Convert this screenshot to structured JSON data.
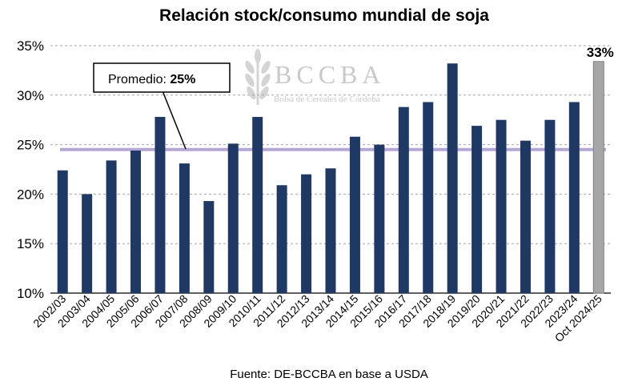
{
  "chart_data": {
    "type": "bar",
    "title": "Relación stock/consumo mundial de soja",
    "source": "Fuente: DE-BCCBA en base a USDA",
    "categories": [
      "2002/03",
      "2003/04",
      "2004/05",
      "2005/06",
      "2006/07",
      "2007/08",
      "2008/09",
      "2009/10",
      "2010/11",
      "2011/12",
      "2012/13",
      "2013/14",
      "2014/15",
      "2015/16",
      "2016/17",
      "2017/18",
      "2018/19",
      "2019/20",
      "2020/21",
      "2021/22",
      "2022/23",
      "2023/24",
      "Oct 2024/25"
    ],
    "values": [
      22.4,
      20.0,
      23.4,
      24.4,
      27.8,
      23.1,
      19.3,
      25.1,
      27.8,
      20.9,
      22.0,
      22.6,
      25.8,
      25.0,
      28.8,
      29.3,
      33.2,
      26.9,
      27.5,
      25.4,
      27.5,
      29.3,
      33.4
    ],
    "highlight_last": true,
    "last_label": "33%",
    "average": 24.5,
    "average_label_prefix": "Promedio: ",
    "average_label_value": "25%",
    "ylim": [
      10,
      35
    ],
    "yticks": [
      "10%",
      "15%",
      "20%",
      "25%",
      "30%",
      "35%"
    ],
    "ytick_values": [
      10,
      15,
      20,
      25,
      30,
      35
    ],
    "grid": true,
    "xlabel": "",
    "ylabel": "",
    "colors": {
      "bar": "#1f3864",
      "highlight": "#a6a6a6",
      "average": "#b4a7d6",
      "grid": "#a6a6a6"
    },
    "watermark": {
      "text": "BCCBA",
      "subtext": "Bolsa de Cereales de Córdoba",
      "icon": "wheat-logo"
    }
  }
}
